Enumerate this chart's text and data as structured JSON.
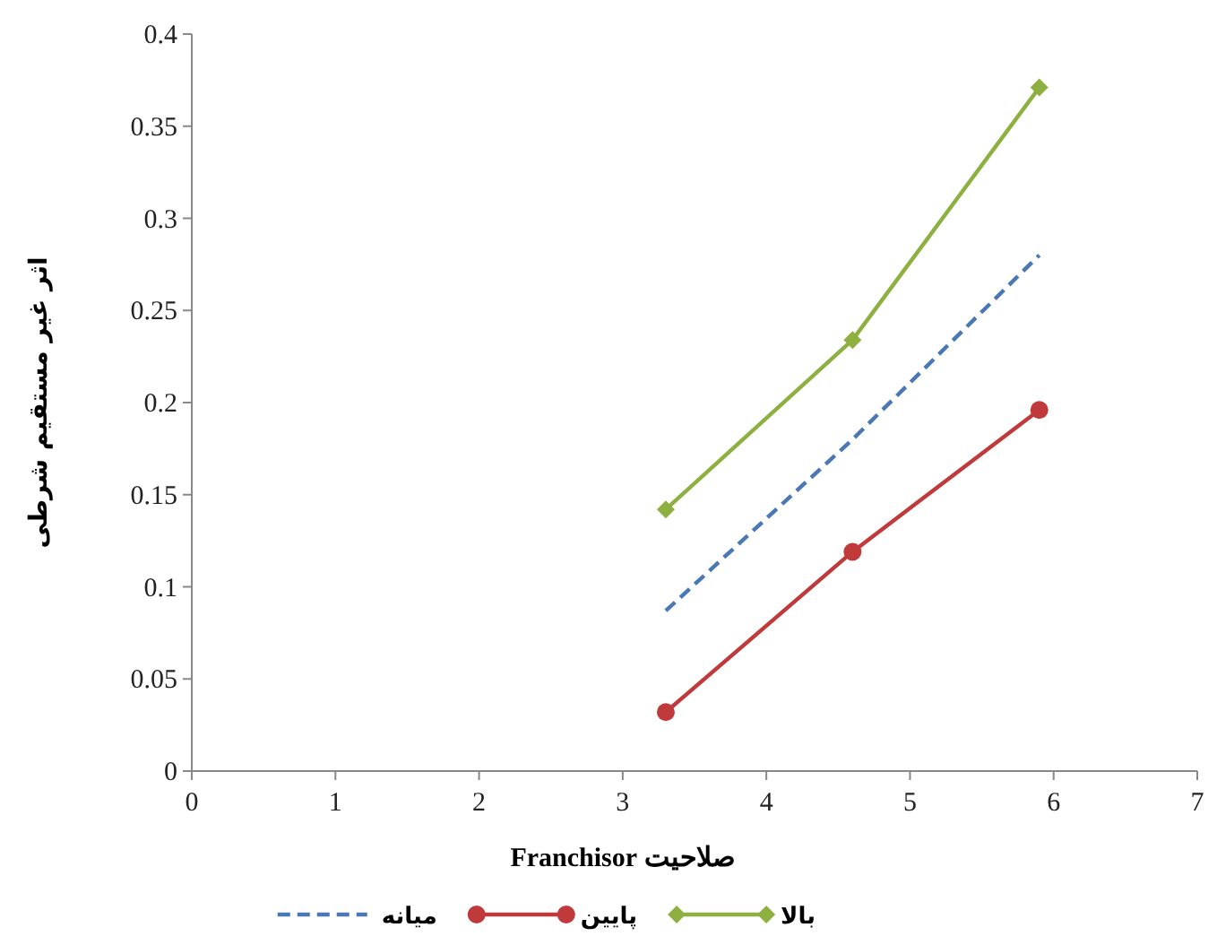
{
  "chart_data": {
    "type": "line",
    "xlabel": "صلاحیت Franchisor",
    "ylabel": "اثر غیر مستقیم شرطی",
    "xlim": [
      0,
      7
    ],
    "xticks": [
      0,
      1,
      2,
      3,
      4,
      5,
      6,
      7
    ],
    "ylim": [
      0,
      0.4
    ],
    "yticks": [
      0,
      0.05,
      0.1,
      0.15,
      0.2,
      0.25,
      0.3,
      0.35,
      0.4
    ],
    "x": [
      3.3,
      4.6,
      5.9
    ],
    "grid": false,
    "legend": "bottom",
    "series": [
      {
        "name": "بالا",
        "color": "#8db040",
        "values": [
          0.142,
          0.234,
          0.371
        ],
        "marker": "diamond",
        "line_style": "solid"
      },
      {
        "name": "پایین",
        "color": "#c0393b",
        "values": [
          0.032,
          0.119,
          0.196
        ],
        "marker": "circle",
        "line_style": "solid"
      },
      {
        "name": "میانه",
        "color": "#4a78b5",
        "values": [
          0.087,
          0.18,
          0.28
        ],
        "marker": "none",
        "line_style": "dashed"
      }
    ]
  }
}
